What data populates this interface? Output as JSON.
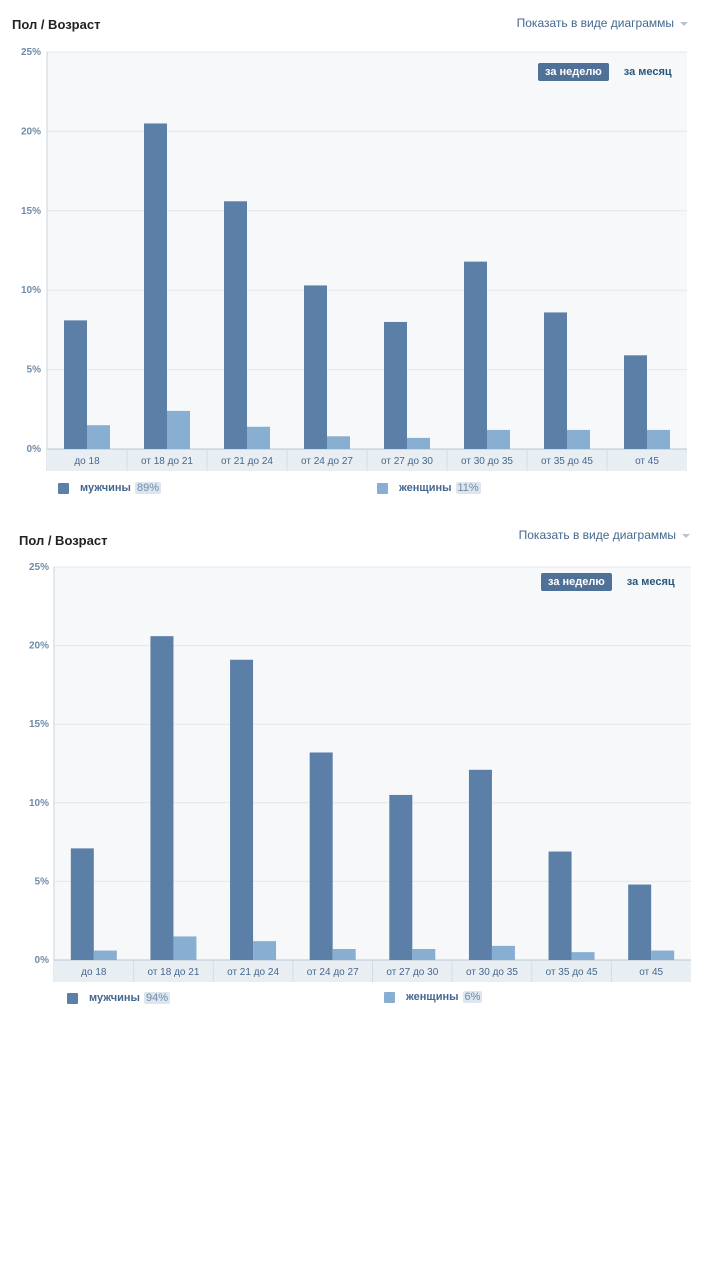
{
  "header": {
    "view_link": "Показать в виде диаграммы"
  },
  "chart_data": [
    {
      "type": "bar",
      "title": "Пол / Возраст",
      "categories": [
        "до 18",
        "от 18 до 21",
        "от 21 до 24",
        "от 24 до 27",
        "от 27 до 30",
        "от 30 до 35",
        "от 35 до 45",
        "от 45"
      ],
      "series": [
        {
          "name": "мужчины",
          "share": "89%",
          "color": "#5b7fa6",
          "values": [
            8.1,
            20.5,
            15.6,
            10.3,
            8.0,
            11.8,
            8.6,
            5.9
          ]
        },
        {
          "name": "женщины",
          "share": "11%",
          "color": "#88afd1",
          "values": [
            1.5,
            2.4,
            1.4,
            0.8,
            0.7,
            1.2,
            1.2,
            1.2
          ]
        }
      ],
      "yticks": [
        "0%",
        "5%",
        "10%",
        "15%",
        "20%",
        "25%"
      ],
      "ylim": [
        0,
        25
      ],
      "grid": true,
      "legend": "bottom",
      "period_options": [
        "за неделю",
        "за месяц"
      ],
      "period_active": 0
    },
    {
      "type": "bar",
      "title": "Пол / Возраст",
      "categories": [
        "до 18",
        "от 18 до 21",
        "от 21 до 24",
        "от 24 до 27",
        "от 27 до 30",
        "от 30 до 35",
        "от 35 до 45",
        "от 45"
      ],
      "series": [
        {
          "name": "мужчины",
          "share": "94%",
          "color": "#5b7fa6",
          "values": [
            7.1,
            20.6,
            19.1,
            13.2,
            10.5,
            12.1,
            6.9,
            4.8
          ]
        },
        {
          "name": "женщины",
          "share": "6%",
          "color": "#88afd1",
          "values": [
            0.6,
            1.5,
            1.2,
            0.7,
            0.7,
            0.9,
            0.5,
            0.6
          ]
        }
      ],
      "yticks": [
        "0%",
        "5%",
        "10%",
        "15%",
        "20%",
        "25%"
      ],
      "ylim": [
        0,
        25
      ],
      "grid": true,
      "legend": "bottom",
      "period_options": [
        "за неделю",
        "за месяц"
      ],
      "period_active": 0
    }
  ]
}
